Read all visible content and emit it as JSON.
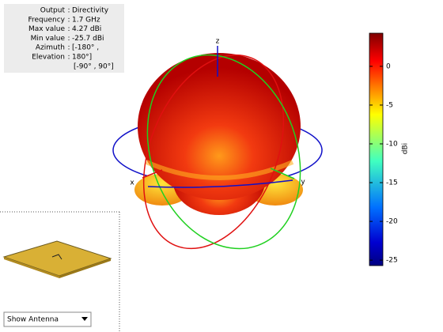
{
  "info_panel": {
    "rows": [
      {
        "label": "Output",
        "value": "Directivity"
      },
      {
        "label": "Frequency",
        "value": "1.7 GHz"
      },
      {
        "label": "Max value",
        "value": "4.27 dBi"
      },
      {
        "label": "Min value",
        "value": "-25.7 dBi"
      },
      {
        "label": "Azimuth",
        "value": "[-180° ,"
      },
      {
        "label": "Elevation",
        "value": "180°]"
      },
      {
        "value": "[-90° , 90°]"
      }
    ],
    "separator": ":"
  },
  "axes": {
    "x": "x",
    "y": "y",
    "z": "z"
  },
  "colorbar": {
    "clim": [
      -25.7,
      4.27
    ],
    "ticks": [
      0,
      -5,
      -10,
      -15,
      -20,
      -25
    ],
    "label": "dBi"
  },
  "dropdown": {
    "selected": "Show Antenna"
  }
}
